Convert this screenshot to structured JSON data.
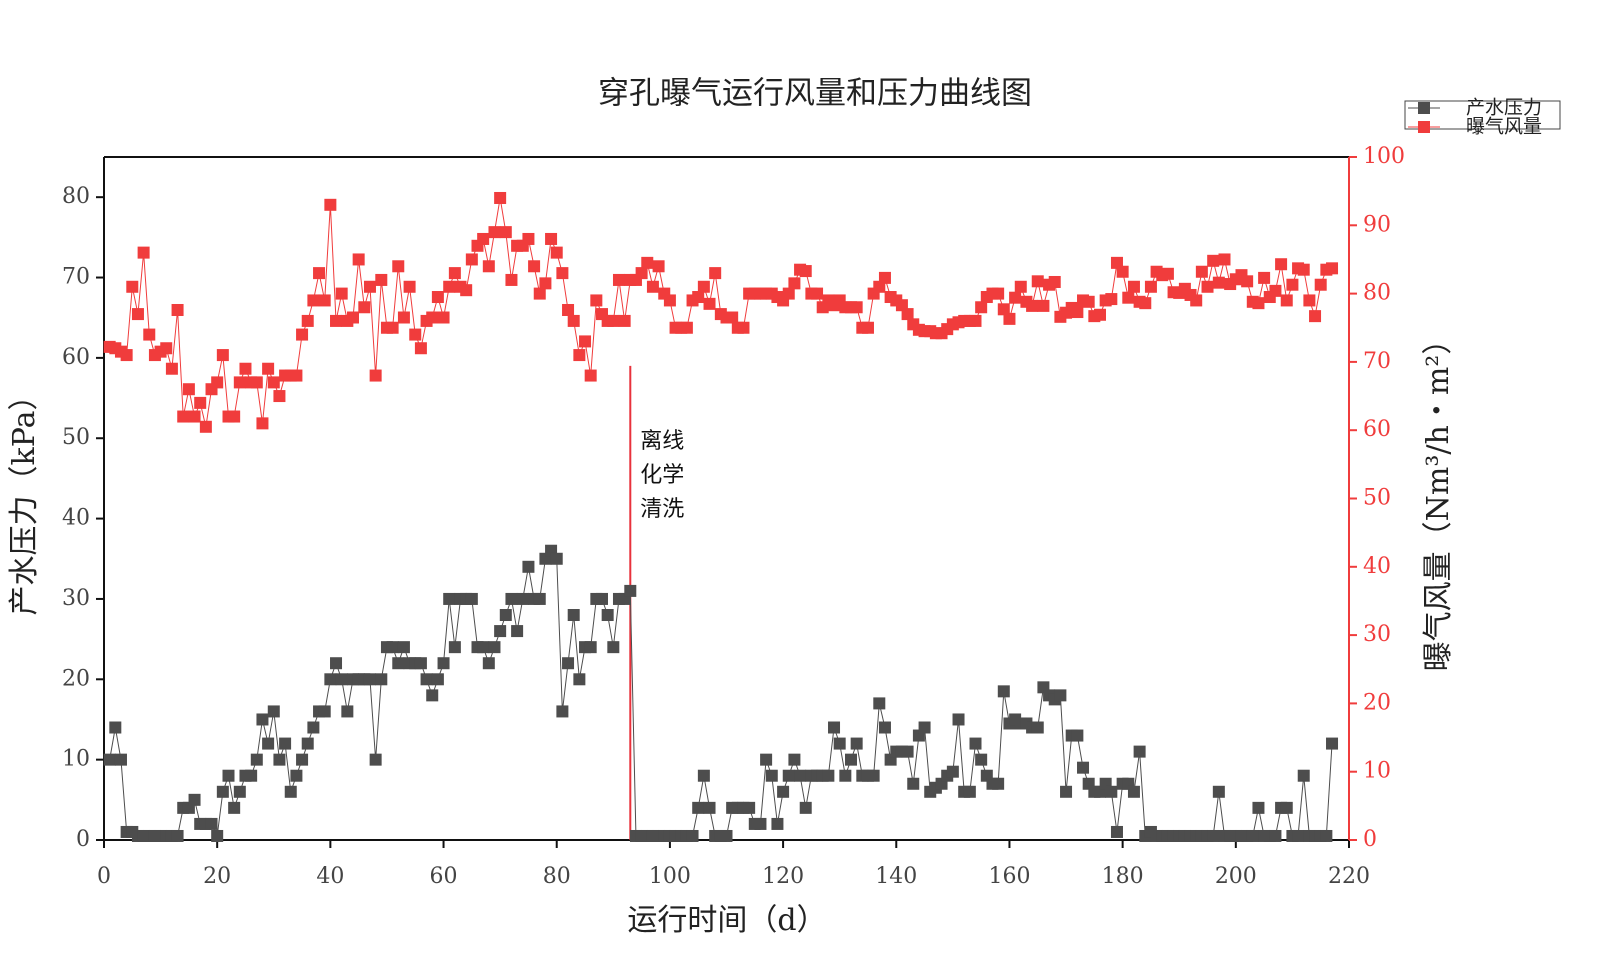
{
  "chart_data": {
    "type": "line",
    "title": "穿孔曝气运行风量和压力曲线图",
    "xlabel": "运行时间（d）",
    "ylabel": "产水压力（kPa）",
    "y2label": "曝气风量（Nm³/h・m²）",
    "xlim": [
      0,
      220
    ],
    "xticks": [
      0,
      20,
      40,
      60,
      80,
      100,
      120,
      140,
      160,
      180,
      200,
      220
    ],
    "ylim": [
      0,
      85
    ],
    "yticks": [
      0,
      10,
      20,
      30,
      40,
      50,
      60,
      70,
      80
    ],
    "y2lim": [
      0,
      100
    ],
    "y2ticks": [
      0,
      10,
      20,
      30,
      40,
      50,
      60,
      70,
      80,
      90,
      100
    ],
    "legend": "top-right",
    "annotation": {
      "lines": [
        "离线",
        "化学",
        "清洗"
      ],
      "x": 93,
      "y_top": 59,
      "color": "#e8323c"
    },
    "x": [
      1,
      2,
      3,
      4,
      5,
      6,
      7,
      8,
      9,
      10,
      11,
      12,
      13,
      14,
      15,
      16,
      17,
      18,
      19,
      20,
      21,
      22,
      23,
      24,
      25,
      26,
      27,
      28,
      29,
      30,
      31,
      32,
      33,
      34,
      35,
      36,
      37,
      38,
      39,
      40,
      41,
      42,
      43,
      44,
      45,
      46,
      47,
      48,
      49,
      50,
      51,
      52,
      53,
      54,
      55,
      56,
      57,
      58,
      59,
      60,
      61,
      62,
      63,
      64,
      65,
      66,
      67,
      68,
      69,
      70,
      71,
      72,
      73,
      74,
      75,
      76,
      77,
      78,
      79,
      80,
      81,
      82,
      83,
      84,
      85,
      86,
      87,
      88,
      89,
      90,
      91,
      92,
      93,
      94,
      95,
      96,
      97,
      98,
      99,
      100,
      101,
      102,
      103,
      104,
      105,
      106,
      107,
      108,
      109,
      110,
      111,
      112,
      113,
      114,
      115,
      116,
      117,
      118,
      119,
      120,
      121,
      122,
      123,
      124,
      125,
      126,
      127,
      128,
      129,
      130,
      131,
      132,
      133,
      134,
      135,
      136,
      137,
      138,
      139,
      140,
      141,
      142,
      143,
      144,
      145,
      146,
      147,
      148,
      149,
      150,
      151,
      152,
      153,
      154,
      155,
      156,
      157,
      158,
      159,
      160,
      161,
      162,
      163,
      164,
      165,
      166,
      167,
      168,
      169,
      170,
      171,
      172,
      173,
      174,
      175,
      176,
      177,
      178,
      179,
      180,
      181,
      182,
      183,
      184,
      185,
      186,
      187,
      188,
      189,
      190,
      191,
      192,
      193,
      194,
      195,
      196,
      197,
      198,
      199,
      200,
      201,
      202,
      203,
      204,
      205,
      206,
      207,
      208,
      209,
      210,
      211,
      212,
      213,
      214,
      215,
      216,
      217
    ],
    "series": [
      {
        "name": "产水压力",
        "color": "#4d4d4d",
        "values": [
          10,
          14,
          10,
          1,
          1,
          0.5,
          0.5,
          0.5,
          0.5,
          0.5,
          0.5,
          0.5,
          0.5,
          4,
          4,
          5,
          2,
          2,
          2,
          0.5,
          6,
          8,
          4,
          6,
          8,
          8,
          10,
          15,
          12,
          16,
          10,
          12,
          6,
          8,
          10,
          12,
          14,
          16,
          16,
          20,
          22,
          20,
          16,
          20,
          20,
          20,
          20,
          10,
          20,
          24,
          24,
          22,
          24,
          22,
          22,
          22,
          20,
          18,
          20,
          22,
          30,
          24,
          30,
          30,
          30,
          24,
          24,
          22,
          24,
          26,
          28,
          30,
          26,
          30,
          34,
          30,
          30,
          35,
          36,
          35,
          16,
          22,
          28,
          20,
          24,
          24,
          30,
          30,
          28,
          24,
          30,
          30,
          31,
          0.5,
          0.5,
          0.5,
          0.5,
          0.5,
          0.5,
          0.5,
          0.5,
          0.5,
          0.5,
          0.5,
          4,
          8,
          4,
          0.5,
          0.5,
          0.5,
          4,
          4,
          4,
          4,
          2,
          2,
          10,
          8,
          2,
          6,
          8,
          10,
          8,
          4,
          8,
          8,
          8,
          8,
          14,
          12,
          8,
          10,
          12,
          8,
          8,
          8,
          17,
          14,
          10,
          11,
          11,
          11,
          7,
          13,
          14,
          6,
          6.5,
          7,
          8,
          8.5,
          15,
          6,
          6,
          12,
          10,
          8,
          7,
          7,
          18.5,
          14.5,
          15,
          14.5,
          14.5,
          14,
          14,
          19,
          18,
          17.5,
          18,
          6,
          13,
          13,
          9,
          7,
          6,
          6,
          7,
          6,
          1,
          7,
          7,
          6,
          11,
          0.5,
          1,
          0.5,
          0.5,
          0.5,
          0.5,
          0.5,
          0.5,
          0.5,
          0.5,
          0.5,
          0.5,
          0.5,
          6,
          0.5,
          0.5,
          0.5,
          0.5,
          0.5,
          0.5,
          4,
          0.5,
          0.5,
          0.5,
          4,
          4,
          0.5,
          0.5,
          8,
          0.5,
          0.5,
          0.5,
          0.5,
          12
        ]
      },
      {
        "name": "曝气风量",
        "color": "#f03c3c",
        "axis": "y2",
        "values": [
          72.2,
          72,
          71.5,
          71,
          81,
          77,
          86,
          74,
          71,
          71.5,
          72,
          69,
          77.6,
          62,
          66,
          62,
          64,
          60.5,
          66,
          67,
          71,
          62,
          62,
          67,
          69,
          67,
          67,
          61,
          69,
          67,
          65,
          68,
          68,
          68,
          74,
          76,
          79,
          83,
          79,
          93,
          76,
          80,
          76,
          76.5,
          85,
          78,
          81,
          68,
          82,
          75,
          75,
          84,
          76.5,
          81,
          74,
          72,
          76,
          76.5,
          79.5,
          76.5,
          81,
          83,
          81,
          80.5,
          85,
          87,
          88,
          84,
          89,
          94,
          89,
          82,
          87,
          87,
          88,
          84,
          80,
          81.5,
          88,
          86,
          83,
          77.6,
          76,
          71,
          73,
          68,
          79,
          77,
          76,
          76,
          82,
          76,
          82,
          82,
          83,
          84.5,
          81,
          84,
          80,
          79,
          75,
          75,
          75,
          79,
          79.5,
          81,
          78.5,
          83,
          77,
          76.5,
          76.5,
          75,
          75,
          80,
          80,
          80,
          80,
          80,
          79.5,
          79,
          80,
          81.5,
          83.5,
          83.3,
          80,
          80,
          78,
          79,
          78.3,
          79,
          78,
          78,
          78,
          75,
          75,
          80,
          81,
          82.3,
          79.5,
          79,
          78.3,
          77,
          75.5,
          74.7,
          74.5,
          74.5,
          74.2,
          74.2,
          74.8,
          75.5,
          75.8,
          76,
          76,
          76,
          78,
          79.5,
          80,
          80,
          77.7,
          76.3,
          79.4,
          81,
          78.8,
          78.2,
          81.8,
          78.2,
          81.3,
          81.7,
          76.6,
          77.2,
          77.9,
          77.3,
          79,
          78.8,
          76.7,
          76.9,
          79,
          79.2,
          84.5,
          83.2,
          79.4,
          81,
          78.8,
          78.6,
          81,
          83.2,
          82.7,
          82.9,
          80.2,
          80.1,
          80.7,
          79.8,
          79,
          83.2,
          81,
          84.8,
          81.6,
          85,
          81.4,
          82.1,
          82.7,
          81.8,
          78.8,
          78.6,
          82.3,
          79.5,
          80.4,
          84.3,
          79,
          81.3,
          83.7,
          83.5,
          79,
          76.7,
          81.3,
          83.5,
          83.7
        ]
      }
    ]
  }
}
